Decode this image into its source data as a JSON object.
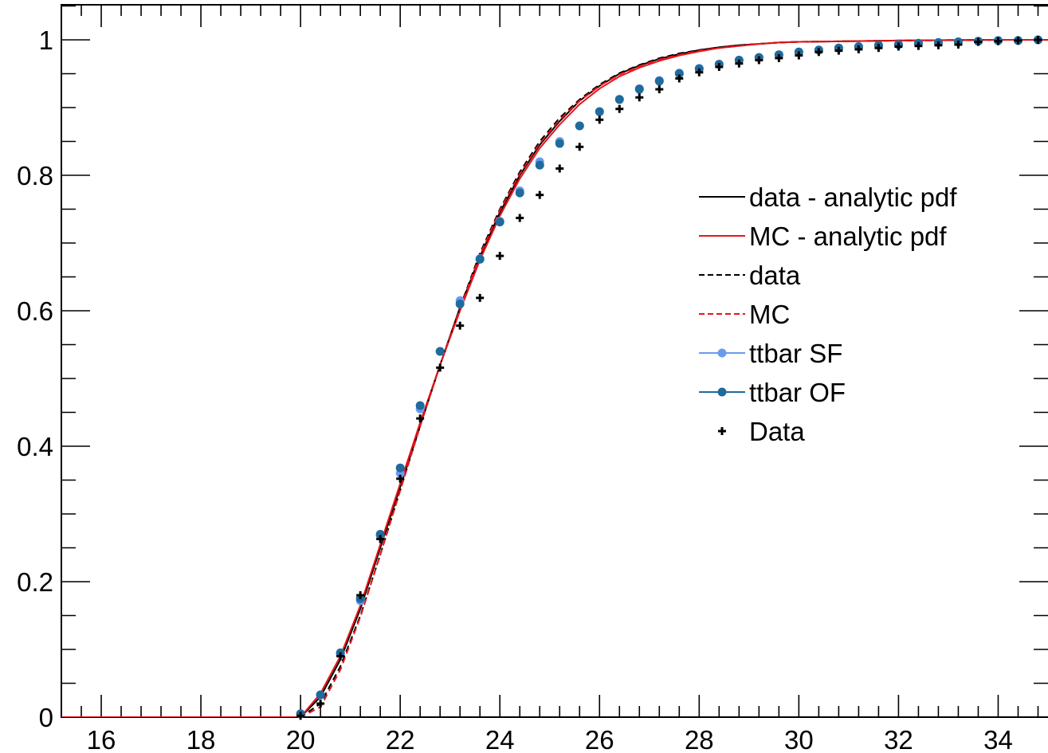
{
  "chart_data": {
    "type": "line",
    "title": "",
    "xlabel": "",
    "ylabel": "",
    "xlim": [
      15.2,
      35
    ],
    "ylim": [
      0,
      1.05
    ],
    "grid": false,
    "legend_position": "right",
    "x_ticks": [
      16,
      18,
      20,
      22,
      24,
      26,
      28,
      30,
      32,
      34
    ],
    "x_tick_labels": [
      "16",
      "18",
      "20",
      "22",
      "24",
      "26",
      "28",
      "30",
      "32",
      "34"
    ],
    "y_ticks": [
      0,
      0.2,
      0.4,
      0.6,
      0.8,
      1
    ],
    "y_tick_labels": [
      "0",
      "0.2",
      "0.4",
      "0.6",
      "0.8",
      "1"
    ],
    "colors": {
      "data_line": "#000000",
      "mc_line": "#e8141a",
      "ttbar_sf": "#6b9bef",
      "ttbar_of": "#1e6b9c",
      "data_points": "#000000"
    },
    "series": [
      {
        "name": "data - analytic pdf",
        "style": "solid",
        "color": "#000000",
        "x": [
          15.2,
          20.0,
          20.4,
          20.8,
          21.2,
          21.6,
          22.0,
          22.4,
          22.8,
          23.2,
          23.6,
          24.0,
          24.4,
          24.8,
          25.2,
          25.6,
          26.0,
          26.4,
          26.8,
          27.2,
          27.6,
          28.0,
          28.4,
          28.8,
          29.2,
          29.6,
          30.0,
          31.0,
          32.0,
          33.0,
          34.0,
          35.0
        ],
        "y": [
          0,
          0,
          0.03,
          0.085,
          0.16,
          0.25,
          0.34,
          0.43,
          0.52,
          0.605,
          0.68,
          0.745,
          0.8,
          0.845,
          0.88,
          0.91,
          0.932,
          0.95,
          0.962,
          0.972,
          0.979,
          0.985,
          0.989,
          0.992,
          0.994,
          0.996,
          0.997,
          0.998,
          0.999,
          0.9995,
          1.0,
          1.0
        ]
      },
      {
        "name": "MC - analytic pdf",
        "style": "solid",
        "color": "#e8141a",
        "x": [
          15.2,
          20.0,
          20.4,
          20.8,
          21.2,
          21.6,
          22.0,
          22.4,
          22.8,
          23.2,
          23.6,
          24.0,
          24.4,
          24.8,
          25.2,
          25.6,
          26.0,
          26.4,
          26.8,
          27.2,
          27.6,
          28.0,
          28.4,
          28.8,
          29.2,
          29.6,
          30.0,
          31.0,
          32.0,
          33.0,
          34.0,
          35.0
        ],
        "y": [
          0,
          0,
          0.035,
          0.09,
          0.165,
          0.255,
          0.345,
          0.435,
          0.52,
          0.6,
          0.675,
          0.74,
          0.795,
          0.84,
          0.875,
          0.905,
          0.928,
          0.946,
          0.959,
          0.969,
          0.977,
          0.983,
          0.988,
          0.991,
          0.994,
          0.996,
          0.997,
          0.998,
          0.999,
          0.9995,
          1.0,
          1.0
        ]
      },
      {
        "name": "data",
        "style": "dashed",
        "color": "#000000",
        "x": [
          15.2,
          20.0,
          20.4,
          20.8,
          21.2,
          21.6,
          22.0,
          22.4,
          22.8,
          23.2,
          23.6,
          24.0,
          24.4,
          24.8,
          25.2,
          25.6,
          26.0,
          26.4,
          26.8,
          27.2,
          27.6,
          28.0,
          28.4,
          28.8,
          29.2,
          29.6,
          30.0,
          31.0,
          32.0,
          33.0,
          34.0,
          35.0
        ],
        "y": [
          0,
          0,
          0.02,
          0.075,
          0.15,
          0.24,
          0.335,
          0.43,
          0.52,
          0.605,
          0.685,
          0.75,
          0.805,
          0.85,
          0.885,
          0.912,
          0.934,
          0.951,
          0.963,
          0.973,
          0.98,
          0.985,
          0.989,
          0.992,
          0.994,
          0.996,
          0.997,
          0.998,
          0.999,
          0.9995,
          1.0,
          1.0
        ]
      },
      {
        "name": "MC",
        "style": "dashed",
        "color": "#e8141a",
        "x": [
          15.2,
          20.0,
          20.4,
          20.8,
          21.2,
          21.6,
          22.0,
          22.4,
          22.8,
          23.2,
          23.6,
          24.0,
          24.4,
          24.8,
          25.2,
          25.6,
          26.0,
          26.4,
          26.8,
          27.2,
          27.6,
          28.0,
          28.4,
          28.8,
          29.2,
          29.6,
          30.0,
          31.0,
          32.0,
          33.0,
          34.0,
          35.0
        ],
        "y": [
          0,
          0,
          0.015,
          0.07,
          0.148,
          0.24,
          0.335,
          0.43,
          0.52,
          0.603,
          0.682,
          0.748,
          0.802,
          0.847,
          0.882,
          0.91,
          0.932,
          0.949,
          0.961,
          0.971,
          0.978,
          0.984,
          0.988,
          0.991,
          0.994,
          0.996,
          0.997,
          0.998,
          0.999,
          0.9995,
          1.0,
          1.0
        ]
      },
      {
        "name": "ttbar SF",
        "style": "markers",
        "color": "#6b9bef",
        "x": [
          20.0,
          20.4,
          20.8,
          21.2,
          21.6,
          22.0,
          22.4,
          22.8,
          23.2,
          23.6,
          24.0,
          24.4,
          24.8,
          25.2,
          25.6,
          26.0,
          26.4,
          26.8,
          27.2,
          27.6,
          28.0,
          28.4,
          28.8,
          29.2,
          29.6,
          30.0,
          30.4,
          30.8,
          31.2,
          31.6,
          32.0,
          32.4,
          32.8,
          33.2,
          33.6,
          34.0,
          34.4,
          34.8
        ],
        "y": [
          0.005,
          0.033,
          0.093,
          0.172,
          0.268,
          0.36,
          0.455,
          0.54,
          0.615,
          0.677,
          0.732,
          0.777,
          0.82,
          0.85,
          0.873,
          0.894,
          0.912,
          0.928,
          0.94,
          0.951,
          0.958,
          0.964,
          0.97,
          0.974,
          0.978,
          0.982,
          0.985,
          0.988,
          0.99,
          0.992,
          0.993,
          0.995,
          0.996,
          0.997,
          0.998,
          0.999,
          0.999,
          1.0
        ]
      },
      {
        "name": "ttbar OF",
        "style": "markers",
        "color": "#1e6b9c",
        "x": [
          20.0,
          20.4,
          20.8,
          21.2,
          21.6,
          22.0,
          22.4,
          22.8,
          23.2,
          23.6,
          24.0,
          24.4,
          24.8,
          25.2,
          25.6,
          26.0,
          26.4,
          26.8,
          27.2,
          27.6,
          28.0,
          28.4,
          28.8,
          29.2,
          29.6,
          30.0,
          30.4,
          30.8,
          31.2,
          31.6,
          32.0,
          32.4,
          32.8,
          33.2,
          33.6,
          34.0,
          34.4,
          34.8
        ],
        "y": [
          0.005,
          0.033,
          0.095,
          0.175,
          0.27,
          0.368,
          0.46,
          0.54,
          0.61,
          0.676,
          0.731,
          0.774,
          0.815,
          0.847,
          0.873,
          0.894,
          0.912,
          0.927,
          0.939,
          0.95,
          0.957,
          0.964,
          0.97,
          0.974,
          0.978,
          0.982,
          0.985,
          0.988,
          0.99,
          0.992,
          0.993,
          0.995,
          0.996,
          0.997,
          0.998,
          0.999,
          0.999,
          1.0
        ]
      },
      {
        "name": "Data",
        "style": "crosses",
        "color": "#000000",
        "x": [
          20.0,
          20.4,
          20.8,
          21.2,
          21.6,
          22.0,
          22.4,
          22.8,
          23.2,
          23.6,
          24.0,
          24.4,
          24.8,
          25.2,
          25.6,
          26.0,
          26.4,
          26.8,
          27.2,
          27.6,
          28.0,
          28.4,
          28.8,
          29.2,
          29.6,
          30.0,
          30.4,
          30.8,
          31.2,
          31.6,
          32.0,
          32.4,
          32.8,
          33.2,
          33.6,
          34.0,
          34.4,
          34.8
        ],
        "y": [
          0.002,
          0.02,
          0.09,
          0.18,
          0.263,
          0.352,
          0.441,
          0.516,
          0.578,
          0.619,
          0.681,
          0.737,
          0.771,
          0.81,
          0.842,
          0.882,
          0.898,
          0.915,
          0.927,
          0.943,
          0.952,
          0.96,
          0.965,
          0.97,
          0.973,
          0.977,
          0.982,
          0.984,
          0.986,
          0.988,
          0.99,
          0.991,
          0.992,
          0.993,
          0.997,
          0.998,
          0.999,
          1.0
        ]
      }
    ]
  }
}
